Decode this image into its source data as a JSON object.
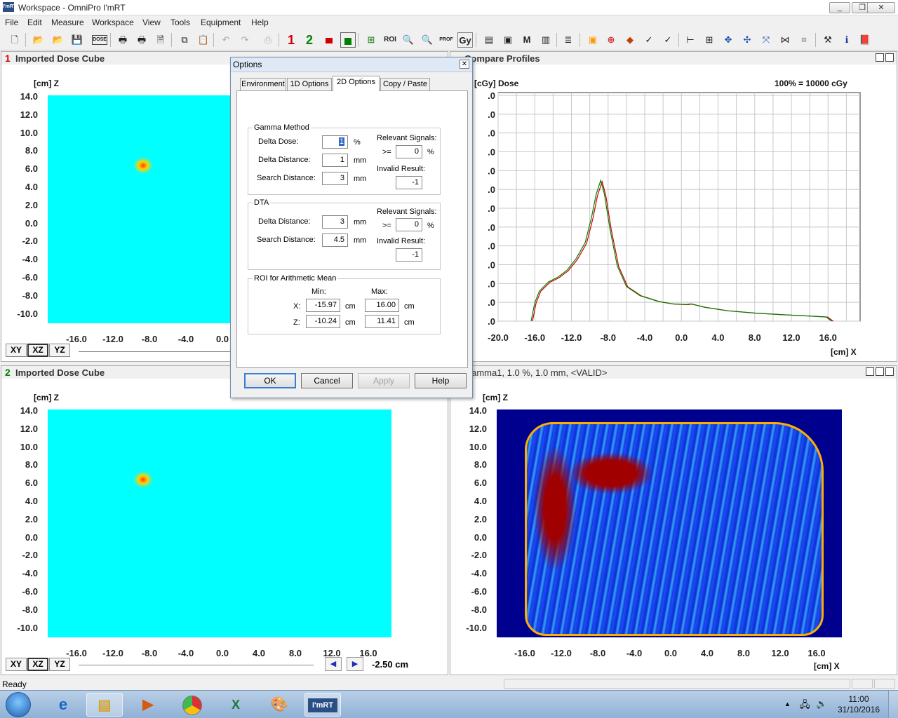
{
  "window": {
    "title": "Workspace - OmniPro I'mRT",
    "icon_text": "I'mRT"
  },
  "menu": [
    "File",
    "Edit",
    "Measure",
    "Workspace",
    "View",
    "Tools",
    "Equipment",
    "Help"
  ],
  "toolbar": {
    "btn1": "1",
    "btn2": "2",
    "gy": "Gy",
    "prof": "PROF",
    "dose": "DOSE"
  },
  "panels": {
    "p1": {
      "num": "1",
      "title": "Imported Dose Cube",
      "axis_y": "[cm] Z"
    },
    "p2": {
      "title": "Compare Profiles",
      "axis_y": "[cGy] Dose",
      "norm": "100% = 10000 cGy",
      "axis_x": "[cm] X",
      "xticks": [
        "-20.0",
        "-16.0",
        "-12.0",
        "-8.0",
        "-4.0",
        "0.0",
        "4.0",
        "8.0",
        "12.0",
        "16.0"
      ],
      "yticks": [
        ".0",
        ".0",
        ".0",
        ".0",
        ".0",
        ".0",
        ".0",
        ".0",
        ".0",
        ".0",
        ".0",
        ".0",
        ".0"
      ]
    },
    "p3": {
      "num": "2",
      "title": "Imported Dose Cube",
      "axis_y": "[cm] Z",
      "pos": "-2.50 cm",
      "partial_header": "100% = 10000 cGy"
    },
    "p4": {
      "title": "Gamma1,  1.0 %,  1.0 mm, <VALID>",
      "axis_y": "[cm] Z",
      "axis_x": "[cm] X",
      "xticks": [
        "-16.0",
        "-12.0",
        "-8.0",
        "-4.0",
        "0.0",
        "4.0",
        "8.0",
        "12.0",
        "16.0"
      ]
    },
    "yticks": [
      "14.0",
      "12.0",
      "10.0",
      "8.0",
      "6.0",
      "4.0",
      "2.0",
      "0.0",
      "-2.0",
      "-4.0",
      "-6.0",
      "-8.0",
      "-10.0"
    ],
    "xticks_partial": [
      "-16.0",
      "-12.0",
      "-8.0",
      "-4.0",
      "0.0",
      "4.0",
      "8.0",
      "12.0",
      "16.0"
    ],
    "view_buttons": [
      "XY",
      "XZ",
      "YZ"
    ]
  },
  "dialog": {
    "title": "Options",
    "tabs": [
      "Environment",
      "1D Options",
      "2D Options",
      "Copy / Paste"
    ],
    "active_tab": "2D Options",
    "gamma": {
      "title": "Gamma Method",
      "delta_dose_label": "Delta Dose:",
      "delta_dose": "1",
      "delta_dose_unit": "%",
      "delta_dist_label": "Delta Distance:",
      "delta_dist": "1",
      "delta_dist_unit": "mm",
      "search_label": "Search Distance:",
      "search": "3",
      "search_unit": "mm",
      "relevant_label": "Relevant Signals:",
      "ge": ">=",
      "relevant": "0",
      "relevant_unit": "%",
      "invalid_label": "Invalid Result:",
      "invalid": "-1"
    },
    "dta": {
      "title": "DTA",
      "delta_dist_label": "Delta Distance:",
      "delta_dist": "3",
      "delta_dist_unit": "mm",
      "search_label": "Search Distance:",
      "search": "4.5",
      "search_unit": "mm",
      "relevant_label": "Relevant Signals:",
      "ge": ">=",
      "relevant": "0",
      "relevant_unit": "%",
      "invalid_label": "Invalid Result:",
      "invalid": "-1"
    },
    "roi": {
      "title": "ROI for Arithmetic Mean",
      "min_label": "Min:",
      "max_label": "Max:",
      "x_label": "X:",
      "x_min": "-15.97",
      "x_max": "16.00",
      "z_label": "Z:",
      "z_min": "-10.24",
      "z_max": "11.41",
      "unit": "cm"
    },
    "buttons": {
      "ok": "OK",
      "cancel": "Cancel",
      "apply": "Apply",
      "help": "Help"
    }
  },
  "status": {
    "text": "Ready"
  },
  "taskbar": {
    "imrt": "I'mRT",
    "time": "11:00",
    "date": "31/10/2016"
  },
  "colors": {
    "blue_bg": "#00008f",
    "red": "#a00000",
    "profile1": "#cc0000",
    "profile2": "#008000"
  }
}
